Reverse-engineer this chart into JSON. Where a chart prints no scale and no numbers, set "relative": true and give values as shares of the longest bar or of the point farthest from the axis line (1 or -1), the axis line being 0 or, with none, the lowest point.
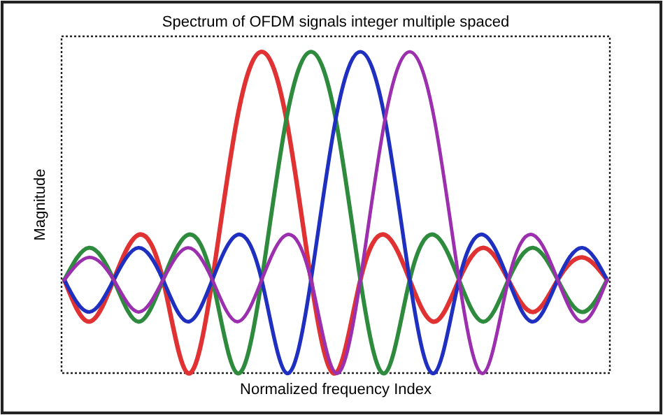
{
  "chart_data": {
    "type": "line",
    "title": "Spectrum of OFDM signals integer multiple spaced",
    "xlabel": "Normalized frequency Index",
    "ylabel": "Magnitude",
    "relative": true,
    "marker": "none",
    "line_style": "solid",
    "categories": [
      null,
      null,
      null,
      null,
      null,
      null,
      null,
      null,
      null,
      null,
      null,
      null,
      null,
      null,
      null,
      null,
      null,
      null,
      null,
      null,
      null,
      null,
      null
    ],
    "series": [
      {
        "color": "#e03232",
        "values": [
          0.29,
          0.16,
          0.29,
          0.43,
          0.29,
          0,
          0.29,
          0.79,
          1,
          0.79,
          0.29,
          0,
          0.29,
          0.43,
          0.29,
          0.16,
          0.29,
          0.39,
          0.29,
          0.19,
          0.29,
          0.36,
          0.29
        ]
      },
      {
        "color": "#2e8b3e",
        "values": [
          0.29,
          0.39,
          0.29,
          0.16,
          0.29,
          0.43,
          0.29,
          0,
          0.29,
          0.79,
          1,
          0.79,
          0.29,
          0,
          0.29,
          0.43,
          0.29,
          0.16,
          0.29,
          0.39,
          0.29,
          0.19,
          0.29
        ]
      },
      {
        "color": "#1f2fc0",
        "values": [
          0.29,
          0.19,
          0.29,
          0.39,
          0.29,
          0.16,
          0.29,
          0.43,
          0.29,
          0,
          0.29,
          0.79,
          1,
          0.79,
          0.29,
          0,
          0.29,
          0.43,
          0.29,
          0.16,
          0.29,
          0.39,
          0.29
        ]
      },
      {
        "color": "#9b2fae",
        "values": [
          0.29,
          0.36,
          0.29,
          0.19,
          0.29,
          0.39,
          0.29,
          0.16,
          0.29,
          0.43,
          0.29,
          0,
          0.29,
          0.79,
          1,
          0.79,
          0.29,
          0,
          0.29,
          0.43,
          0.29,
          0.16,
          0.29
        ]
      }
    ]
  }
}
